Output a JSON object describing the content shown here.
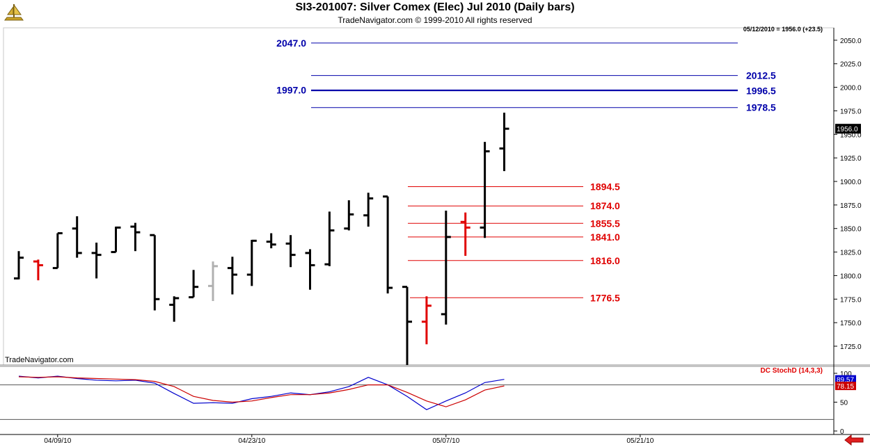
{
  "header": {
    "title": "SI3-201007:  Silver Comex (Elec) Jul 2010  (Daily bars)",
    "subtitle": "TradeNavigator.com © 1999-2010 All rights reserved",
    "status": "05/12/2010 = 1956.0 (+23.5)",
    "watermark": "TradeNavigator.com"
  },
  "colors": {
    "bar_up": "#000000",
    "bar_down": "#e00000",
    "bar_inside": "#b0b0b0",
    "level_blue": "#0000aa",
    "level_red": "#e00000",
    "stoch_k": "#0000cc",
    "stoch_d": "#cc0000"
  },
  "chart_data": [
    {
      "type": "ohlc",
      "title": "SI3-201007:  Silver Comex (Elec) Jul 2010  (Daily bars)",
      "ylim": [
        1700,
        2060
      ],
      "y_ticks": [
        1725.0,
        1750.0,
        1775.0,
        1800.0,
        1825.0,
        1850.0,
        1875.0,
        1900.0,
        1925.0,
        1950.0,
        1975.0,
        2000.0,
        2025.0,
        2050.0
      ],
      "x_tick_labels": [
        "04/09/10",
        "04/23/10",
        "05/07/10",
        "05/21/10"
      ],
      "x_tick_index": [
        2,
        12,
        22,
        32
      ],
      "last_price": "1956.0",
      "bars": [
        {
          "date": "04/06/10",
          "o": 1797,
          "h": 1826,
          "l": 1796,
          "c": 1819,
          "color": "black"
        },
        {
          "date": "04/07/10",
          "o": 1815,
          "h": 1817,
          "l": 1795,
          "c": 1811,
          "color": "red"
        },
        {
          "date": "04/08/10",
          "o": 1808,
          "h": 1845,
          "l": 1808,
          "c": 1845,
          "color": "black"
        },
        {
          "date": "04/09/10",
          "o": 1850,
          "h": 1863,
          "l": 1819,
          "c": 1824,
          "color": "black"
        },
        {
          "date": "04/12/10",
          "o": 1824,
          "h": 1835,
          "l": 1797,
          "c": 1822,
          "color": "black"
        },
        {
          "date": "04/13/10",
          "o": 1825,
          "h": 1852,
          "l": 1825,
          "c": 1851,
          "color": "black"
        },
        {
          "date": "04/14/10",
          "o": 1852,
          "h": 1856,
          "l": 1826,
          "c": 1846,
          "color": "black"
        },
        {
          "date": "04/15/10",
          "o": 1843,
          "h": 1843,
          "l": 1763,
          "c": 1775,
          "color": "black"
        },
        {
          "date": "04/16/10",
          "o": 1769,
          "h": 1778,
          "l": 1751,
          "c": 1776,
          "color": "black"
        },
        {
          "date": "04/19/10",
          "o": 1777,
          "h": 1806,
          "l": 1777,
          "c": 1788,
          "color": "black"
        },
        {
          "date": "04/20/10",
          "o": 1789,
          "h": 1815,
          "l": 1773,
          "c": 1810,
          "color": "gray"
        },
        {
          "date": "04/21/10",
          "o": 1808,
          "h": 1820,
          "l": 1780,
          "c": 1801,
          "color": "black"
        },
        {
          "date": "04/22/10",
          "o": 1801,
          "h": 1838,
          "l": 1789,
          "c": 1837,
          "color": "black"
        },
        {
          "date": "04/23/10",
          "o": 1836,
          "h": 1845,
          "l": 1829,
          "c": 1833,
          "color": "black"
        },
        {
          "date": "04/26/10",
          "o": 1834,
          "h": 1843,
          "l": 1809,
          "c": 1822,
          "color": "black"
        },
        {
          "date": "04/27/10",
          "o": 1824,
          "h": 1828,
          "l": 1785,
          "c": 1811,
          "color": "black"
        },
        {
          "date": "04/28/10",
          "o": 1812,
          "h": 1868,
          "l": 1810,
          "c": 1848,
          "color": "black"
        },
        {
          "date": "04/29/10",
          "o": 1850,
          "h": 1880,
          "l": 1848,
          "c": 1865,
          "color": "black"
        },
        {
          "date": "04/30/10",
          "o": 1864,
          "h": 1888,
          "l": 1852,
          "c": 1882,
          "color": "black"
        },
        {
          "date": "05/03/10",
          "o": 1884,
          "h": 1884,
          "l": 1781,
          "c": 1787,
          "color": "black"
        },
        {
          "date": "05/04/10",
          "o": 1788,
          "h": 1788,
          "l": 1705,
          "c": 1751,
          "color": "black"
        },
        {
          "date": "05/05/10",
          "o": 1751,
          "h": 1778,
          "l": 1727,
          "c": 1768,
          "color": "red"
        },
        {
          "date": "05/06/10",
          "o": 1759,
          "h": 1869,
          "l": 1748,
          "c": 1841,
          "color": "black"
        },
        {
          "date": "05/07/10",
          "o": 1857,
          "h": 1867,
          "l": 1821,
          "c": 1851,
          "color": "red"
        },
        {
          "date": "05/10/10",
          "o": 1851,
          "h": 1942,
          "l": 1840,
          "c": 1932,
          "color": "black"
        },
        {
          "date": "05/11/10",
          "o": 1935,
          "h": 1973,
          "l": 1911,
          "c": 1956,
          "color": "black"
        }
      ],
      "levels_blue": [
        {
          "value": 2047.0,
          "label": "2047.0",
          "side": "left"
        },
        {
          "value": 2012.5,
          "label": "2012.5",
          "side": "right"
        },
        {
          "value": 1997.0,
          "label": "1997.0",
          "side": "left"
        },
        {
          "value": 1996.5,
          "label": "1996.5",
          "side": "right"
        },
        {
          "value": 1978.5,
          "label": "1978.5",
          "side": "right"
        }
      ],
      "levels_red": [
        {
          "value": 1894.5,
          "label": "1894.5"
        },
        {
          "value": 1874.0,
          "label": "1874.0"
        },
        {
          "value": 1855.5,
          "label": "1855.5"
        },
        {
          "value": 1841.0,
          "label": "1841.0"
        },
        {
          "value": 1816.0,
          "label": "1816.0"
        },
        {
          "value": 1776.5,
          "label": "1776.5"
        }
      ]
    },
    {
      "type": "line",
      "title": "DC StochD (14,3,3)",
      "ylim": [
        0,
        100
      ],
      "y_ticks": [
        0,
        50,
        100
      ],
      "reference_lines": [
        80,
        20
      ],
      "series": [
        {
          "name": "%K",
          "color": "#0000cc",
          "current_label": "89.57",
          "values": [
            95,
            92,
            95,
            91,
            88,
            87,
            88,
            83,
            65,
            48,
            49,
            48,
            56,
            60,
            66,
            63,
            68,
            77,
            93,
            80,
            60,
            37,
            52,
            66,
            84,
            89.57
          ]
        },
        {
          "name": "%D",
          "color": "#cc0000",
          "current_label": "78.15",
          "values": [
            94,
            93,
            94,
            92,
            91,
            90,
            89,
            86,
            77,
            60,
            53,
            50,
            52,
            58,
            63,
            63,
            66,
            72,
            80,
            80,
            67,
            52,
            42,
            54,
            71,
            78.15
          ]
        }
      ]
    }
  ]
}
